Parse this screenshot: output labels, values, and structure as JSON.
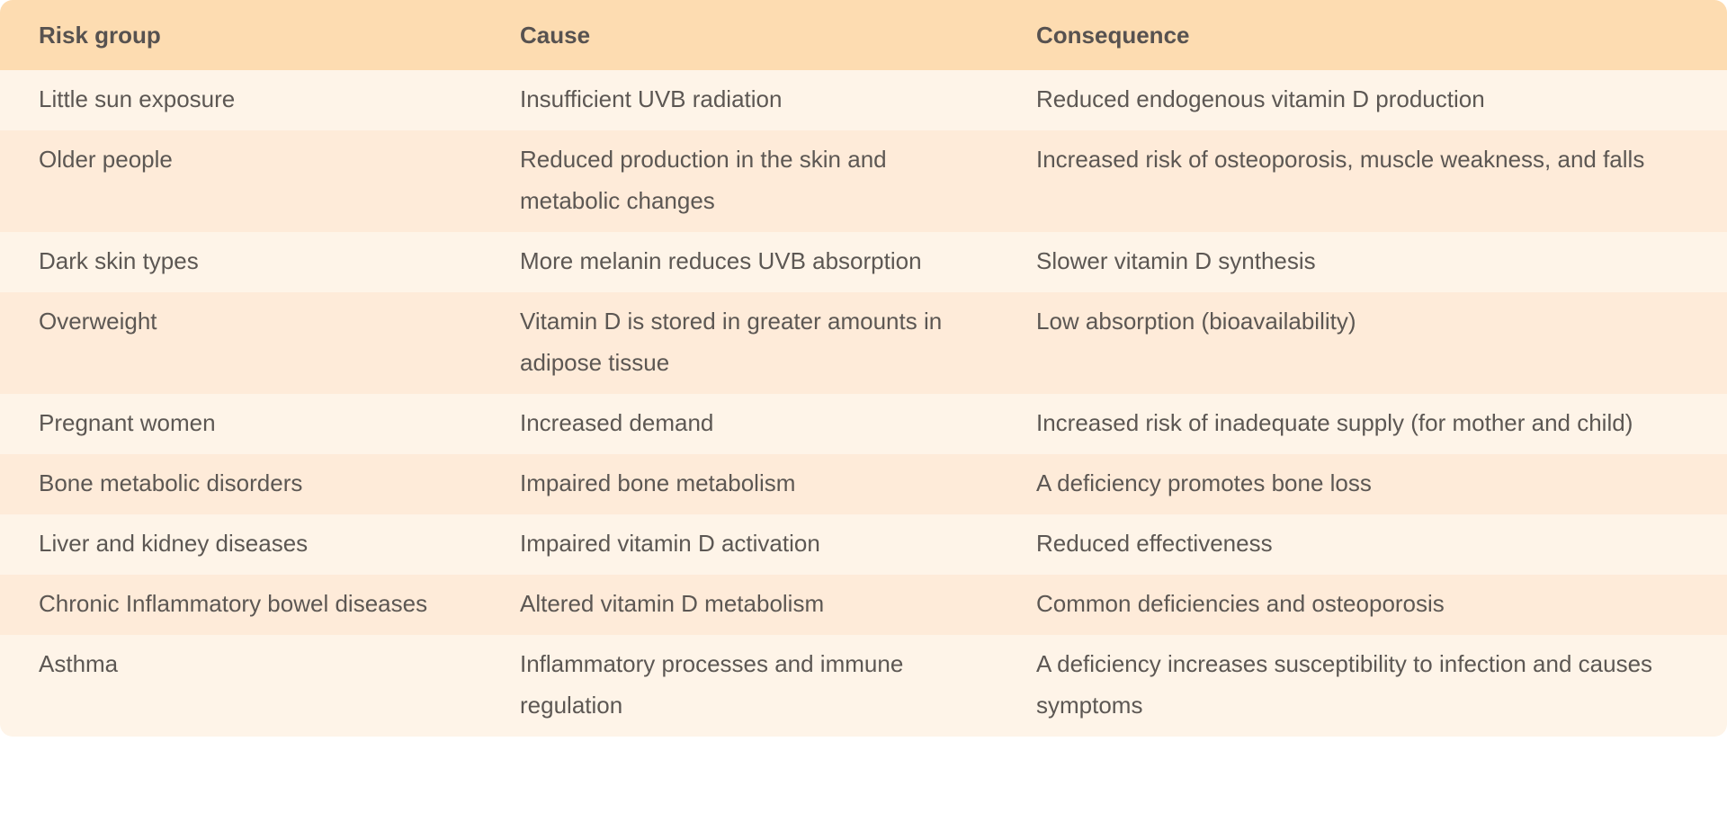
{
  "table": {
    "headers": [
      "Risk group",
      "Cause",
      "Consequence"
    ],
    "rows": [
      [
        "Little sun exposure",
        "Insufficient UVB radiation",
        "Reduced endogenous vitamin D production"
      ],
      [
        "Older people",
        "Reduced production in the skin and metabolic changes",
        "Increased risk of osteoporosis, muscle weakness, and falls"
      ],
      [
        "Dark skin types",
        "More melanin reduces UVB absorption",
        "Slower vitamin D synthesis"
      ],
      [
        "Overweight",
        "Vitamin D is stored in greater amounts in adipose tissue",
        "Low absorption (bioavailability)"
      ],
      [
        "Pregnant women",
        "Increased demand",
        "Increased risk of inadequate supply (for mother and child)"
      ],
      [
        "Bone metabolic disorders",
        "Impaired bone metabolism",
        "A deficiency promotes bone loss"
      ],
      [
        "Liver and kidney diseases",
        "Impaired vitamin D activation",
        "Reduced effectiveness"
      ],
      [
        "Chronic Inflammatory bowel diseases",
        "Altered vitamin D metabolism",
        "Common deficiencies and osteoporosis"
      ],
      [
        "Asthma",
        "Inflammatory processes and immune regulation",
        "A deficiency increases susceptibility to infection and causes symptoms"
      ]
    ]
  },
  "colors": {
    "header_bg": "#fddcb1",
    "row_light": "#fef4e8",
    "row_dark": "#feebd9",
    "text": "#5c5753"
  }
}
